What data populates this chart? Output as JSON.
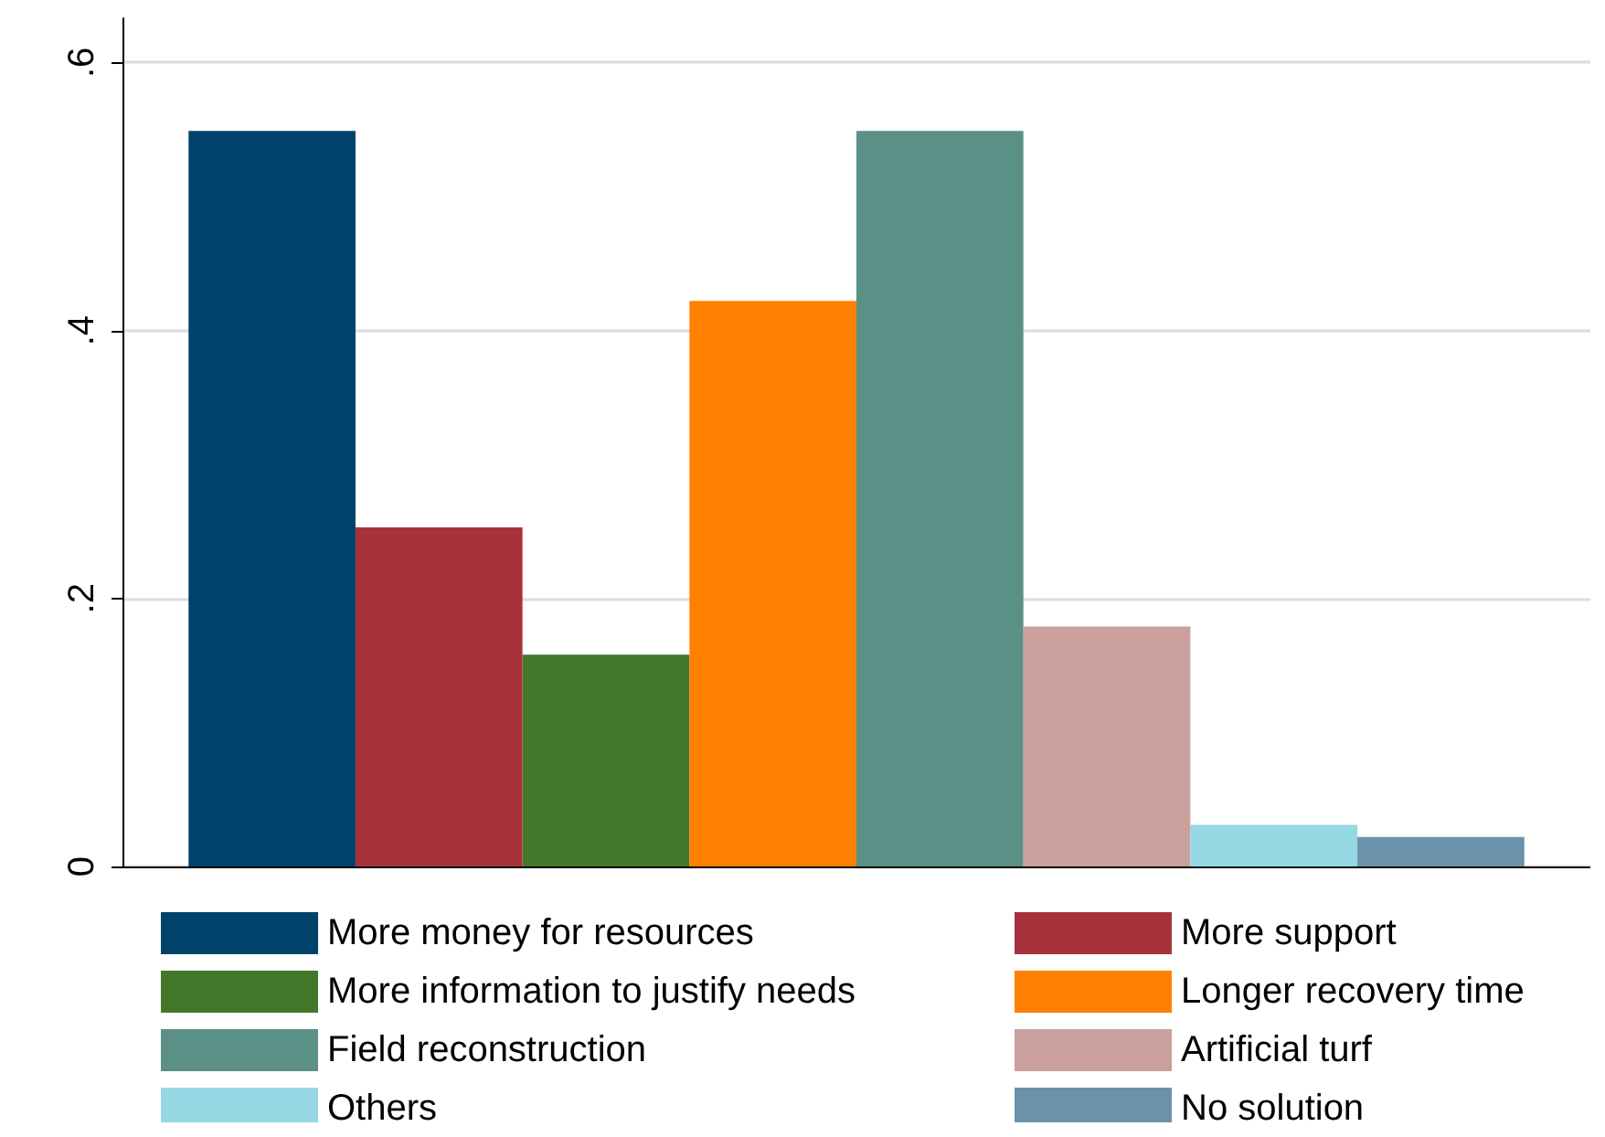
{
  "chart_data": {
    "type": "bar",
    "categories": [
      null
    ],
    "series": [
      {
        "name": "More money for resources",
        "color": "#01426a",
        "values": [
          0.549
        ]
      },
      {
        "name": "More support",
        "color": "#a8323c",
        "values": [
          0.253
        ]
      },
      {
        "name": "More information to justify needs",
        "color": "#43782a",
        "values": [
          0.158
        ]
      },
      {
        "name": "Longer recovery time",
        "color": "#ff8000",
        "values": [
          0.422
        ]
      },
      {
        "name": "Field reconstruction",
        "color": "#5b9086",
        "values": [
          0.549
        ]
      },
      {
        "name": "Artificial turf",
        "color": "#c9a09c",
        "values": [
          0.179
        ]
      },
      {
        "name": "Others",
        "color": "#95d8e4",
        "values": [
          0.031
        ]
      },
      {
        "name": "No solution",
        "color": "#6a93ab",
        "values": [
          0.022
        ]
      }
    ],
    "ylim": [
      0,
      0.633
    ],
    "yticks": [
      {
        "value": 0,
        "label": "0"
      },
      {
        "value": 0.2,
        "label": ".2"
      },
      {
        "value": 0.4,
        "label": ".4"
      },
      {
        "value": 0.6,
        "label": ".6"
      }
    ],
    "grid": "y",
    "legend": "bottom"
  }
}
